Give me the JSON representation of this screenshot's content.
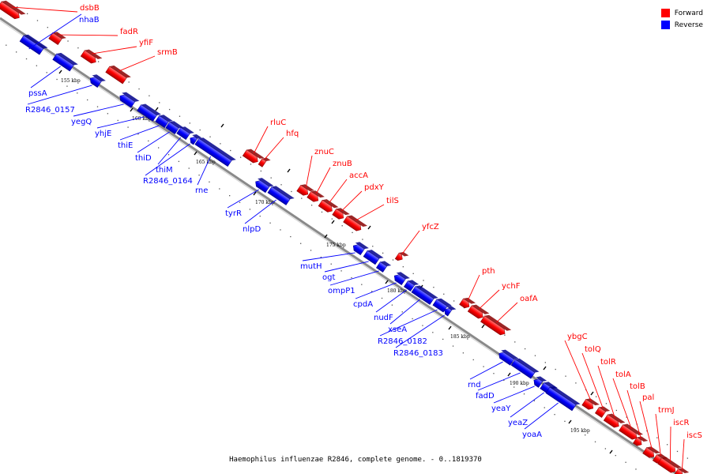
{
  "caption": "Haemophilus influenzae R2846, complete genome. - 0..1819370",
  "legend": {
    "forward": {
      "label": "Forward",
      "color": "#ff0000"
    },
    "reverse": {
      "label": "Reverse",
      "color": "#0000ff"
    }
  },
  "axis": {
    "color": "#7f7f7f",
    "ticks": [
      "155 kbp",
      "160 kbp",
      "165 kbp",
      "170 kbp",
      "175 kbp",
      "180 kbp",
      "185 kbp",
      "190 kbp",
      "195 kbp"
    ]
  },
  "genes": {
    "forward": [
      "dsbB",
      "fadR",
      "yfiF",
      "srmB",
      "rluC",
      "hfq",
      "znuC",
      "znuB",
      "accA",
      "pdxY",
      "tilS",
      "yfcZ",
      "pth",
      "ychF",
      "oafA",
      "ybgC",
      "tolQ",
      "tolR",
      "tolA",
      "tolB",
      "pal",
      "trmJ",
      "iscR",
      "iscS"
    ],
    "reverse": [
      "nhaB",
      "pssA",
      "R2846_0157",
      "yegQ",
      "yhjE",
      "thiE",
      "thiD",
      "thiM",
      "R2846_0164",
      "rne",
      "tyrR",
      "nlpD",
      "mutH",
      "ogt",
      "ompP1",
      "cpdA",
      "nudF",
      "xseA",
      "R2846_0182",
      "R2846_0183",
      "rnd",
      "fadD",
      "yeaY",
      "yeaZ",
      "yoaA"
    ]
  }
}
